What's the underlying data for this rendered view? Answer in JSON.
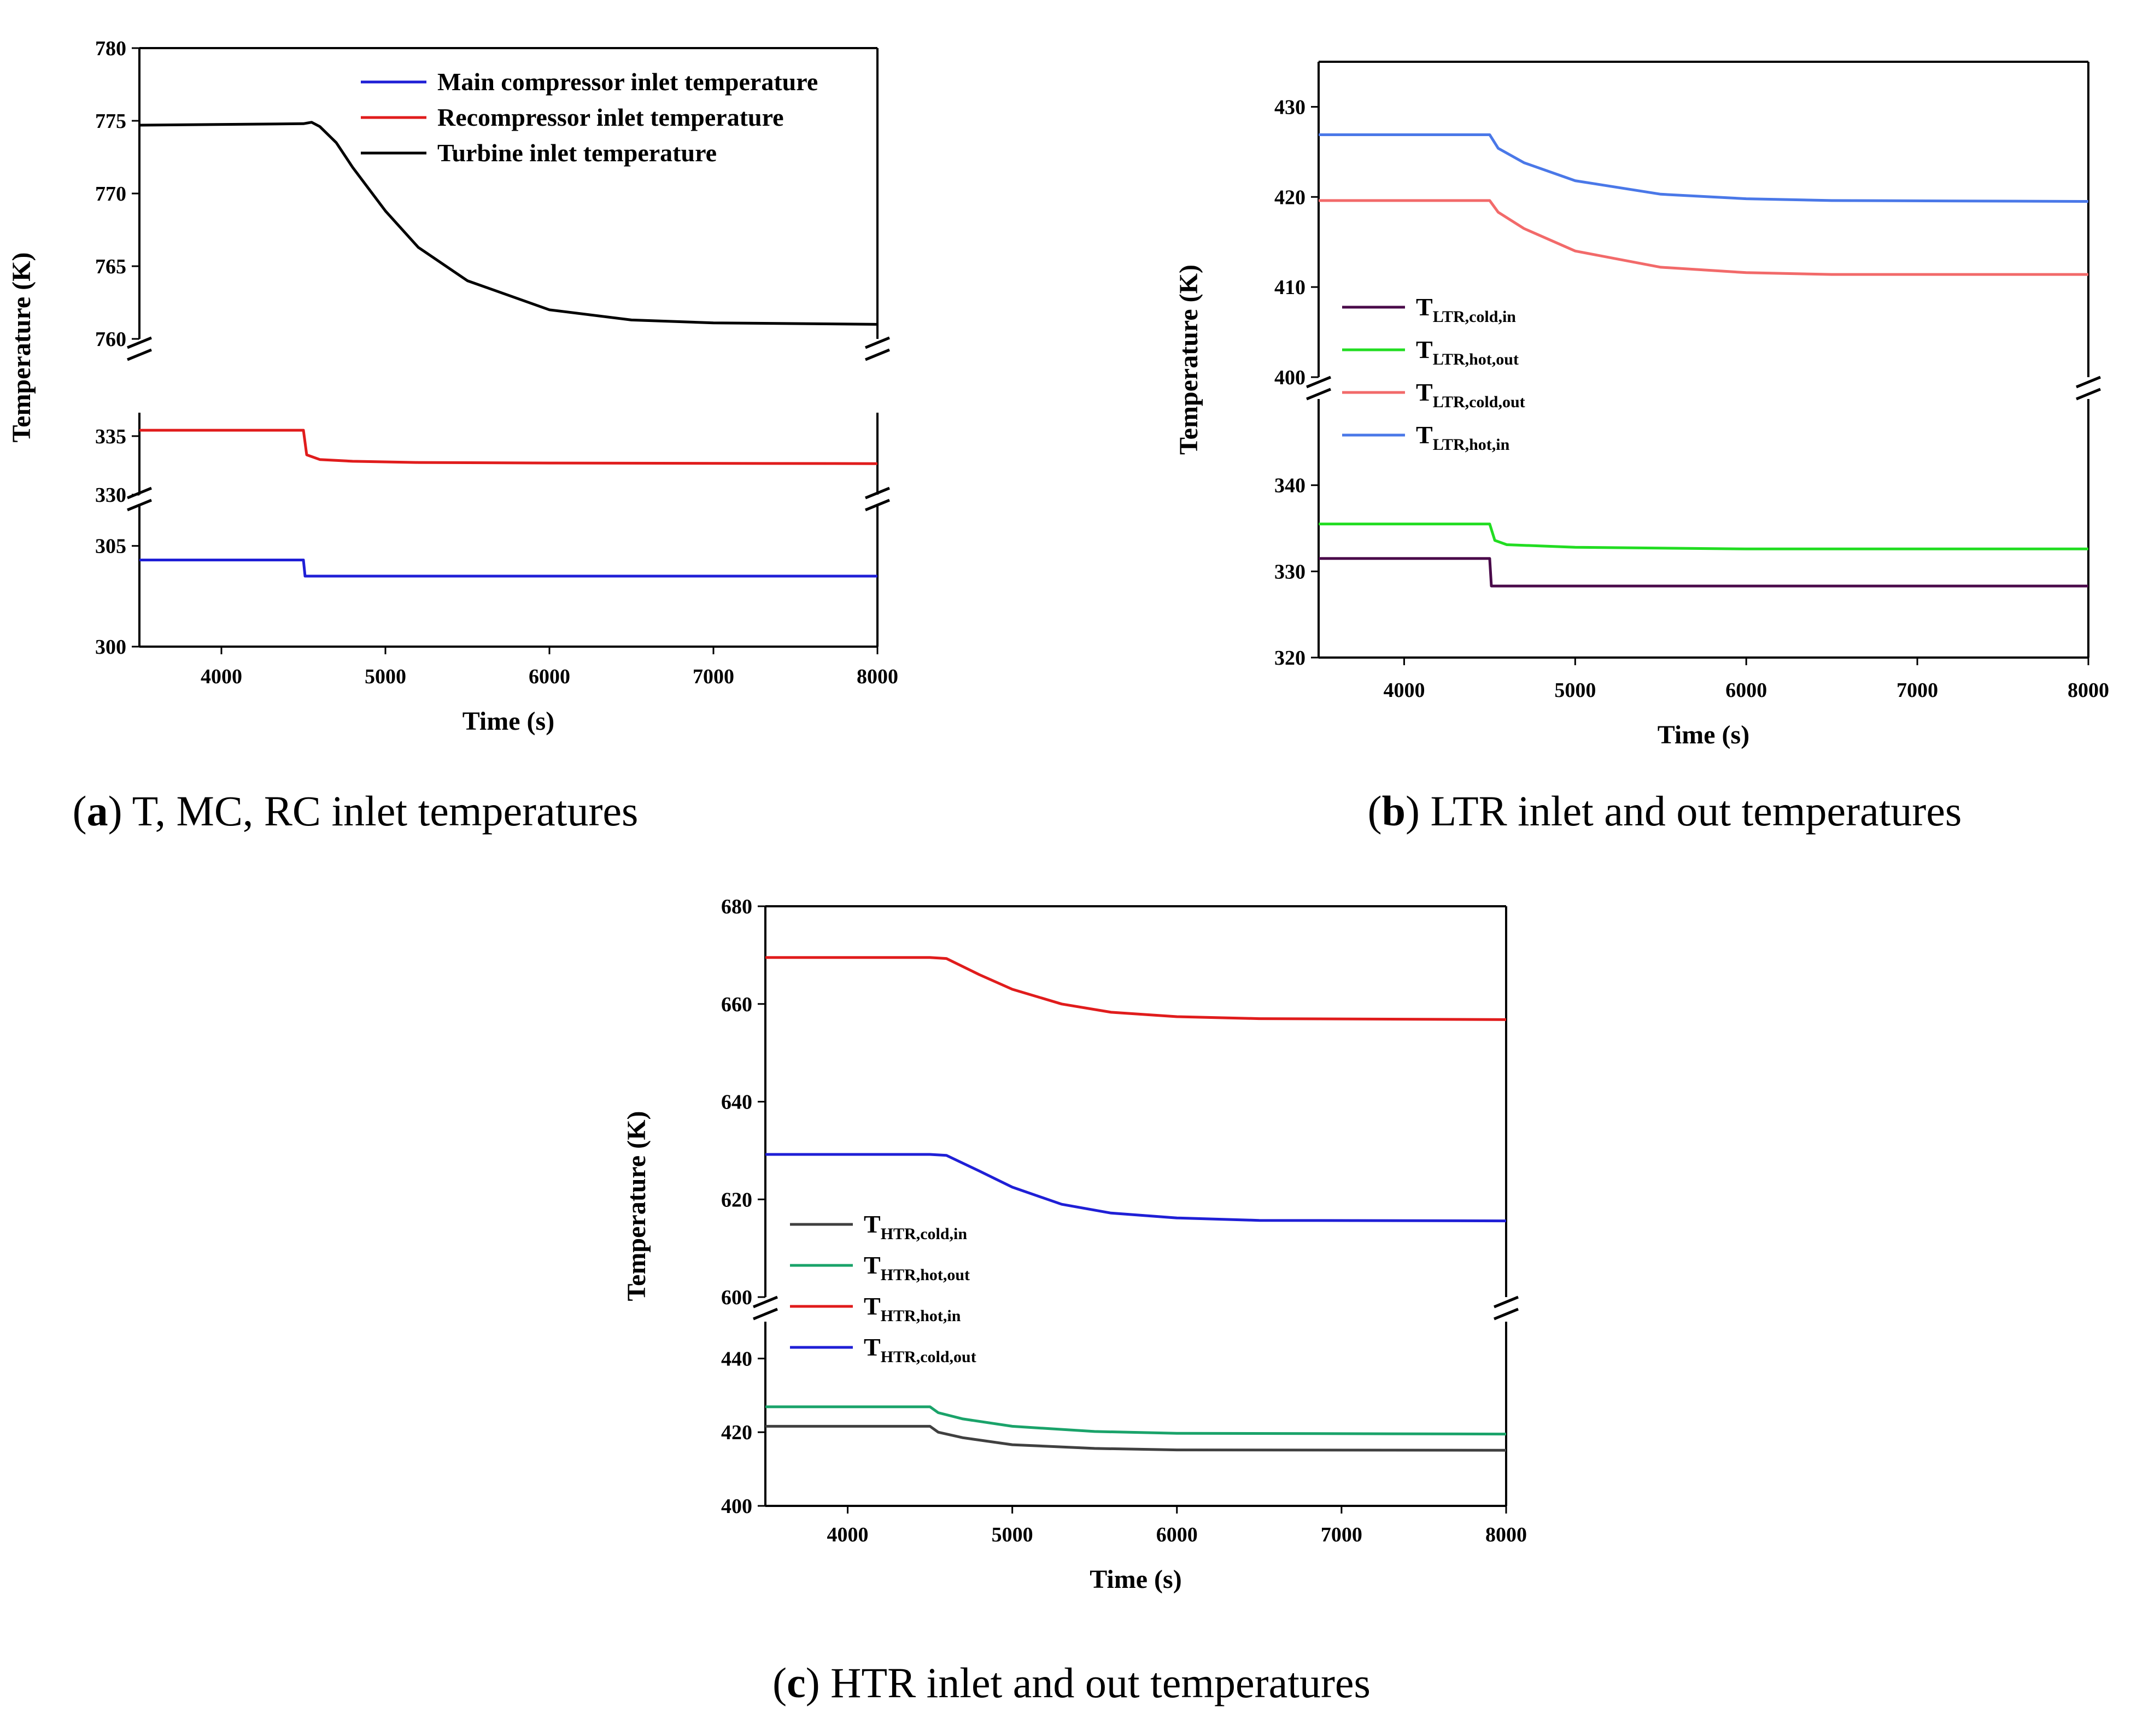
{
  "figure": {
    "captions": [
      {
        "letter": "a",
        "text": "T, MC, RC inlet temperatures"
      },
      {
        "letter": "b",
        "text": "LTR inlet and out temperatures"
      },
      {
        "letter": "c",
        "text": "HTR inlet and out temperatures"
      }
    ]
  },
  "chart_data": [
    {
      "id": "a",
      "type": "line",
      "xlabel": "Time (s)",
      "ylabel": "Temperature (K)",
      "xlim": [
        3500,
        8000
      ],
      "xticks": [
        4000,
        5000,
        6000,
        7000,
        8000
      ],
      "legend_position": "top-right",
      "segments": [
        {
          "ylim": [
            760,
            780
          ],
          "yticks": [
            760,
            765,
            770,
            775,
            780
          ]
        },
        {
          "ylim": [
            330,
            337
          ],
          "yticks": [
            330,
            335
          ]
        },
        {
          "ylim": [
            300,
            307
          ],
          "yticks": [
            300,
            305
          ]
        }
      ],
      "series": [
        {
          "name": "Main compressor inlet temperature",
          "color": "#1f1fd6",
          "segment": 2,
          "points": [
            [
              3500,
              304.3
            ],
            [
              4500,
              304.3
            ],
            [
              4510,
              303.5
            ],
            [
              8000,
              303.5
            ]
          ]
        },
        {
          "name": "Recompressor inlet temperature",
          "color": "#e01c1c",
          "segment": 1,
          "points": [
            [
              3500,
              335.5
            ],
            [
              4500,
              335.5
            ],
            [
              4520,
              333.4
            ],
            [
              4600,
              333.0
            ],
            [
              4800,
              332.85
            ],
            [
              5200,
              332.75
            ],
            [
              6000,
              332.7
            ],
            [
              8000,
              332.65
            ]
          ]
        },
        {
          "name": "Turbine inlet temperature",
          "color": "#000000",
          "segment": 0,
          "points": [
            [
              3500,
              774.7
            ],
            [
              4500,
              774.8
            ],
            [
              4550,
              774.9
            ],
            [
              4600,
              774.6
            ],
            [
              4700,
              773.5
            ],
            [
              4800,
              771.8
            ],
            [
              5000,
              768.8
            ],
            [
              5200,
              766.3
            ],
            [
              5500,
              764.0
            ],
            [
              6000,
              762.0
            ],
            [
              6500,
              761.3
            ],
            [
              7000,
              761.1
            ],
            [
              8000,
              761.0
            ]
          ]
        }
      ]
    },
    {
      "id": "b",
      "type": "line",
      "xlabel": "Time (s)",
      "ylabel": "Temperature (K)",
      "xlim": [
        3500,
        8000
      ],
      "xticks": [
        4000,
        5000,
        6000,
        7000,
        8000
      ],
      "legend_position": "middle-left",
      "segments": [
        {
          "ylim": [
            400,
            435
          ],
          "yticks": [
            400,
            410,
            420,
            430
          ]
        },
        {
          "ylim": [
            320,
            350
          ],
          "yticks": [
            320,
            330,
            340
          ]
        }
      ],
      "series": [
        {
          "name": "T",
          "sub": "LTR,cold,in",
          "color": "#4a0a4a",
          "segment": 1,
          "points": [
            [
              3500,
              331.5
            ],
            [
              4500,
              331.5
            ],
            [
              4510,
              328.3
            ],
            [
              8000,
              328.3
            ]
          ]
        },
        {
          "name": "T",
          "sub": "LTR,hot,out",
          "color": "#22dd22",
          "segment": 1,
          "points": [
            [
              3500,
              335.5
            ],
            [
              4500,
              335.5
            ],
            [
              4530,
              333.6
            ],
            [
              4600,
              333.1
            ],
            [
              5000,
              332.8
            ],
            [
              6000,
              332.6
            ],
            [
              8000,
              332.6
            ]
          ]
        },
        {
          "name": "T",
          "sub": "LTR,cold,out",
          "color": "#f26a6a",
          "segment": 0,
          "points": [
            [
              3500,
              419.6
            ],
            [
              4500,
              419.6
            ],
            [
              4550,
              418.3
            ],
            [
              4700,
              416.5
            ],
            [
              5000,
              414.0
            ],
            [
              5500,
              412.2
            ],
            [
              6000,
              411.6
            ],
            [
              6500,
              411.4
            ],
            [
              8000,
              411.4
            ]
          ]
        },
        {
          "name": "T",
          "sub": "LTR,hot,in",
          "color": "#4a78e8",
          "segment": 0,
          "points": [
            [
              3500,
              426.9
            ],
            [
              4500,
              426.9
            ],
            [
              4550,
              425.4
            ],
            [
              4700,
              423.8
            ],
            [
              5000,
              421.8
            ],
            [
              5500,
              420.3
            ],
            [
              6000,
              419.8
            ],
            [
              6500,
              419.6
            ],
            [
              8000,
              419.5
            ]
          ]
        }
      ]
    },
    {
      "id": "c",
      "type": "line",
      "xlabel": "Time (s)",
      "ylabel": "Temperature (K)",
      "xlim": [
        3500,
        8000
      ],
      "xticks": [
        4000,
        5000,
        6000,
        7000,
        8000
      ],
      "legend_position": "middle-left",
      "segments": [
        {
          "ylim": [
            600,
            680
          ],
          "yticks": [
            600,
            620,
            640,
            660,
            680
          ]
        },
        {
          "ylim": [
            400,
            450
          ],
          "yticks": [
            400,
            420,
            440
          ]
        }
      ],
      "series": [
        {
          "name": "T",
          "sub": "HTR,cold,in",
          "color": "#404040",
          "segment": 1,
          "points": [
            [
              3500,
              421.6
            ],
            [
              4500,
              421.6
            ],
            [
              4550,
              420.0
            ],
            [
              4700,
              418.5
            ],
            [
              5000,
              416.6
            ],
            [
              5500,
              415.6
            ],
            [
              6000,
              415.2
            ],
            [
              8000,
              415.1
            ]
          ]
        },
        {
          "name": "T",
          "sub": "HTR,hot,out",
          "color": "#1aa36a",
          "segment": 1,
          "points": [
            [
              3500,
              426.9
            ],
            [
              4500,
              426.9
            ],
            [
              4550,
              425.3
            ],
            [
              4700,
              423.6
            ],
            [
              5000,
              421.6
            ],
            [
              5500,
              420.2
            ],
            [
              6000,
              419.7
            ],
            [
              8000,
              419.5
            ]
          ]
        },
        {
          "name": "T",
          "sub": "HTR,hot,in",
          "color": "#e01c1c",
          "segment": 0,
          "points": [
            [
              3500,
              669.5
            ],
            [
              4500,
              669.5
            ],
            [
              4600,
              669.3
            ],
            [
              4800,
              666.0
            ],
            [
              5000,
              663.0
            ],
            [
              5300,
              660.0
            ],
            [
              5600,
              658.3
            ],
            [
              6000,
              657.4
            ],
            [
              6500,
              657.0
            ],
            [
              8000,
              656.8
            ]
          ]
        },
        {
          "name": "T",
          "sub": "HTR,cold,out",
          "color": "#1f1fd6",
          "segment": 0,
          "points": [
            [
              3500,
              629.2
            ],
            [
              4500,
              629.2
            ],
            [
              4600,
              629.0
            ],
            [
              4800,
              625.8
            ],
            [
              5000,
              622.5
            ],
            [
              5300,
              619.0
            ],
            [
              5600,
              617.2
            ],
            [
              6000,
              616.2
            ],
            [
              6500,
              615.7
            ],
            [
              8000,
              615.6
            ]
          ]
        }
      ]
    }
  ]
}
